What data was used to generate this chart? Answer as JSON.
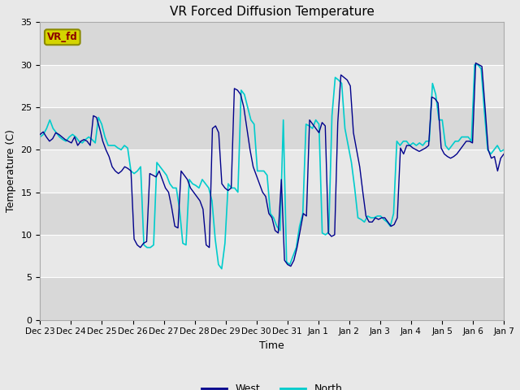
{
  "title": "VR Forced Diffusion Temperature",
  "ylabel": "Temperature (C)",
  "xlabel": "Time",
  "ylim": [
    0,
    35
  ],
  "yticks": [
    0,
    5,
    10,
    15,
    20,
    25,
    30,
    35
  ],
  "fig_bg_color": "#e8e8e8",
  "plot_bg_color": "#d8d8d8",
  "band_light_color": "#e8e8e8",
  "band_dark_color": "#d8d8d8",
  "west_color": "#00008B",
  "north_color": "#00CCCC",
  "grid_color": "#ffffff",
  "label_tag": "VR_fd",
  "label_tag_bg": "#d4d400",
  "label_tag_text": "#8B0000",
  "tick_labels": [
    "Dec 23",
    "Dec 24",
    "Dec 25",
    "Dec 26",
    "Dec 27",
    "Dec 28",
    "Dec 29",
    "Dec 30",
    "Dec 31",
    "Jan 1",
    "Jan 2",
    "Jan 3",
    "Jan 4",
    "Jan 5",
    "Jan 6",
    "Jan 7"
  ],
  "west_data": [
    21.8,
    22.1,
    21.5,
    21.0,
    21.3,
    22.0,
    21.8,
    21.5,
    21.2,
    21.0,
    20.8,
    21.5,
    20.5,
    21.0,
    21.2,
    21.0,
    20.5,
    24.0,
    23.8,
    22.5,
    21.0,
    20.0,
    19.2,
    18.0,
    17.5,
    17.2,
    17.5,
    18.0,
    17.8,
    17.5,
    9.5,
    8.8,
    8.5,
    9.0,
    9.2,
    17.2,
    17.0,
    16.8,
    17.5,
    16.5,
    15.5,
    15.0,
    13.2,
    11.0,
    10.8,
    17.5,
    17.0,
    16.5,
    15.5,
    15.0,
    14.5,
    14.0,
    13.0,
    8.8,
    8.5,
    22.5,
    22.8,
    22.0,
    16.0,
    15.5,
    15.2,
    15.5,
    27.2,
    27.0,
    26.5,
    25.0,
    22.5,
    20.0,
    18.0,
    17.0,
    16.0,
    15.0,
    14.5,
    12.5,
    12.0,
    10.5,
    10.2,
    16.5,
    7.0,
    6.5,
    6.3,
    7.0,
    8.5,
    10.5,
    12.5,
    12.2,
    23.5,
    23.0,
    22.5,
    22.0,
    23.2,
    22.8,
    10.2,
    9.8,
    10.0,
    23.2,
    28.8,
    28.5,
    28.2,
    27.5,
    22.0,
    20.0,
    18.0,
    15.0,
    12.2,
    11.5,
    11.5,
    12.0,
    11.8,
    12.0,
    12.0,
    11.5,
    11.0,
    11.2,
    12.0,
    20.2,
    19.5,
    20.5,
    20.5,
    20.2,
    20.0,
    19.8,
    20.0,
    20.2,
    20.5,
    26.2,
    26.0,
    25.5,
    20.2,
    19.5,
    19.2,
    19.0,
    19.2,
    19.5,
    20.0,
    20.5,
    21.0,
    21.0,
    20.8,
    30.2,
    30.0,
    29.8,
    25.0,
    20.0,
    19.0,
    19.2,
    17.5,
    19.0,
    19.5
  ],
  "north_data": [
    21.5,
    21.8,
    22.5,
    23.5,
    22.5,
    22.0,
    21.5,
    21.2,
    21.0,
    21.5,
    21.8,
    21.5,
    21.0,
    20.8,
    21.2,
    21.5,
    21.2,
    20.8,
    23.8,
    23.0,
    21.5,
    20.5,
    20.5,
    20.5,
    20.2,
    20.0,
    20.5,
    20.2,
    17.5,
    17.2,
    17.5,
    18.0,
    8.8,
    8.5,
    8.5,
    8.8,
    18.5,
    18.0,
    17.5,
    17.0,
    16.0,
    15.5,
    15.5,
    13.0,
    9.0,
    8.8,
    16.5,
    16.0,
    15.8,
    15.5,
    16.5,
    16.0,
    15.5,
    14.0,
    9.5,
    6.5,
    6.0,
    9.0,
    16.0,
    15.5,
    15.5,
    15.0,
    27.0,
    26.5,
    25.0,
    23.5,
    23.0,
    17.5,
    17.5,
    17.5,
    17.0,
    12.5,
    12.0,
    11.0,
    10.5,
    23.5,
    6.8,
    6.5,
    7.5,
    8.5,
    11.0,
    12.5,
    23.0,
    22.8,
    22.5,
    23.5,
    23.0,
    10.2,
    10.0,
    10.3,
    24.0,
    28.5,
    28.2,
    27.8,
    22.5,
    20.5,
    18.5,
    15.5,
    12.0,
    11.8,
    11.5,
    12.2,
    12.0,
    12.0,
    12.2,
    12.2,
    11.8,
    11.5,
    11.0,
    12.5,
    21.0,
    20.5,
    21.0,
    21.0,
    20.5,
    20.8,
    20.5,
    20.8,
    20.5,
    21.0,
    21.0,
    27.8,
    26.5,
    23.5,
    23.5,
    20.5,
    20.0,
    20.5,
    21.0,
    21.0,
    21.5,
    21.5,
    21.5,
    21.0,
    30.0,
    30.0,
    29.5,
    24.5,
    20.0,
    19.5,
    20.0,
    20.5,
    19.8,
    20.0
  ]
}
